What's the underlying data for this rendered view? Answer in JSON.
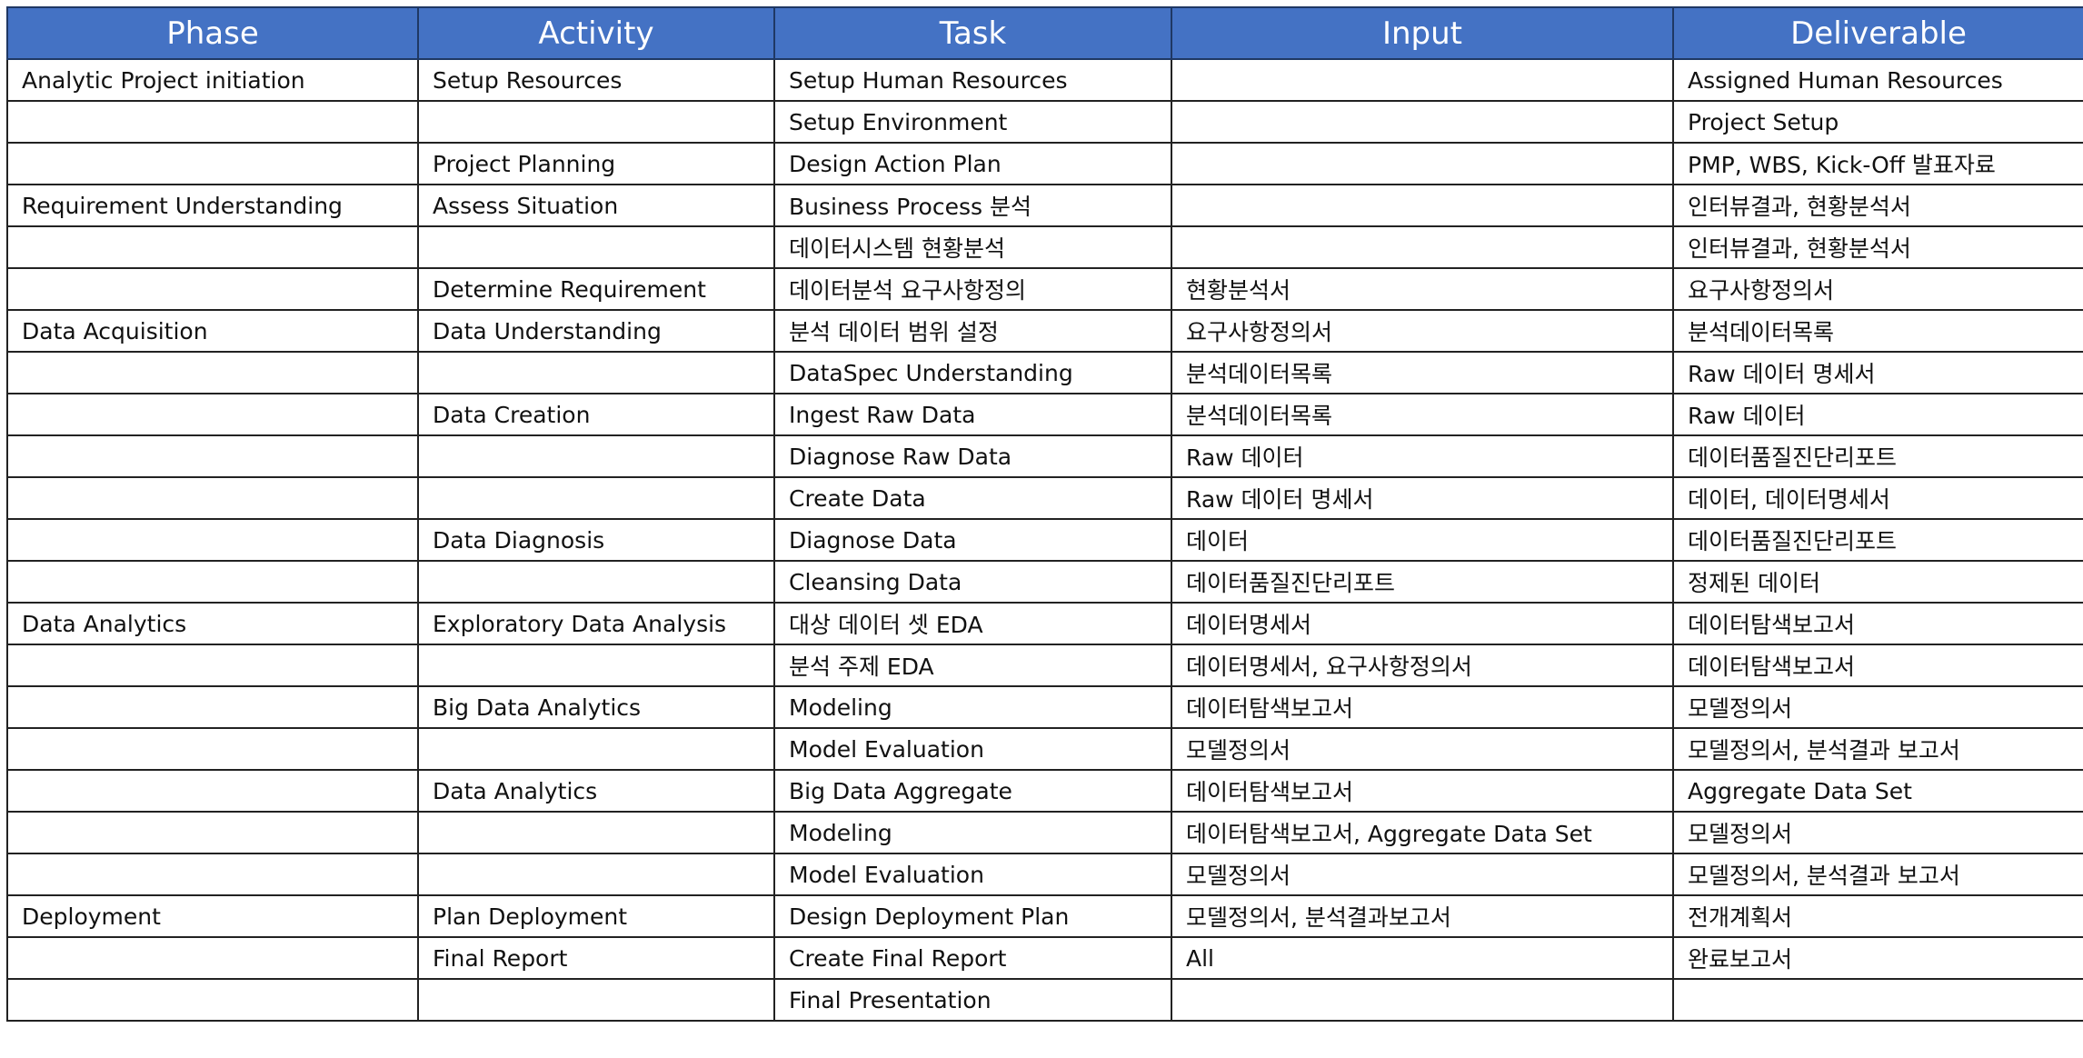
{
  "headers": [
    "Phase",
    "Activity",
    "Task",
    "Input",
    "Deliverable"
  ],
  "rows": [
    [
      "Analytic Project initiation",
      "Setup Resources",
      "Setup Human Resources",
      "",
      "Assigned Human Resources"
    ],
    [
      "",
      "",
      "Setup Environment",
      "",
      "Project Setup"
    ],
    [
      "",
      "Project Planning",
      "Design Action Plan",
      "",
      "PMP, WBS, Kick-Off 발표자료"
    ],
    [
      "Requirement Understanding",
      "Assess Situation",
      "Business Process 분석",
      "",
      "인터뷰결과, 현황분석서"
    ],
    [
      "",
      "",
      "데이터시스템 현황분석",
      "",
      "인터뷰결과, 현황분석서"
    ],
    [
      "",
      "Determine Requirement",
      "데이터분석 요구사항정의",
      "현황분석서",
      "요구사항정의서"
    ],
    [
      "Data Acquisition",
      "Data Understanding",
      "분석 데이터 범위 설정",
      "요구사항정의서",
      "분석데이터목록"
    ],
    [
      "",
      "",
      "DataSpec Understanding",
      "분석데이터목록",
      "Raw 데이터 명세서"
    ],
    [
      "",
      "Data Creation",
      "Ingest Raw Data",
      "분석데이터목록",
      "Raw 데이터"
    ],
    [
      "",
      "",
      "Diagnose Raw Data",
      "Raw 데이터",
      "데이터품질진단리포트"
    ],
    [
      "",
      "",
      "Create Data",
      "Raw 데이터 명세서",
      "데이터, 데이터명세서"
    ],
    [
      "",
      "Data Diagnosis",
      "Diagnose Data",
      "데이터",
      "데이터품질진단리포트"
    ],
    [
      "",
      "",
      "Cleansing Data",
      "데이터품질진단리포트",
      "정제된 데이터"
    ],
    [
      "Data Analytics",
      "Exploratory Data Analysis",
      "대상 데이터 셋 EDA",
      "데이터명세서",
      "데이터탐색보고서"
    ],
    [
      "",
      "",
      "분석 주제 EDA",
      "데이터명세서, 요구사항정의서",
      "데이터탐색보고서"
    ],
    [
      "",
      "Big Data Analytics",
      "Modeling",
      "데이터탐색보고서",
      "모델정의서"
    ],
    [
      "",
      "",
      "Model Evaluation",
      "모델정의서",
      "모델정의서, 분석결과 보고서"
    ],
    [
      "",
      "Data Analytics",
      "Big Data Aggregate",
      "데이터탐색보고서",
      "Aggregate Data Set"
    ],
    [
      "",
      "",
      "Modeling",
      "데이터탐색보고서, Aggregate Data Set",
      "모델정의서"
    ],
    [
      "",
      "",
      "Model Evaluation",
      "모델정의서",
      "모델정의서, 분석결과 보고서"
    ],
    [
      "Deployment",
      "Plan Deployment",
      "Design Deployment Plan",
      "모델정의서, 분석결과보고서",
      "전개계획서"
    ],
    [
      "",
      "Final Report",
      "Create Final Report",
      "All",
      "완료보고서"
    ],
    [
      "",
      "",
      "Final Presentation",
      "",
      ""
    ]
  ]
}
